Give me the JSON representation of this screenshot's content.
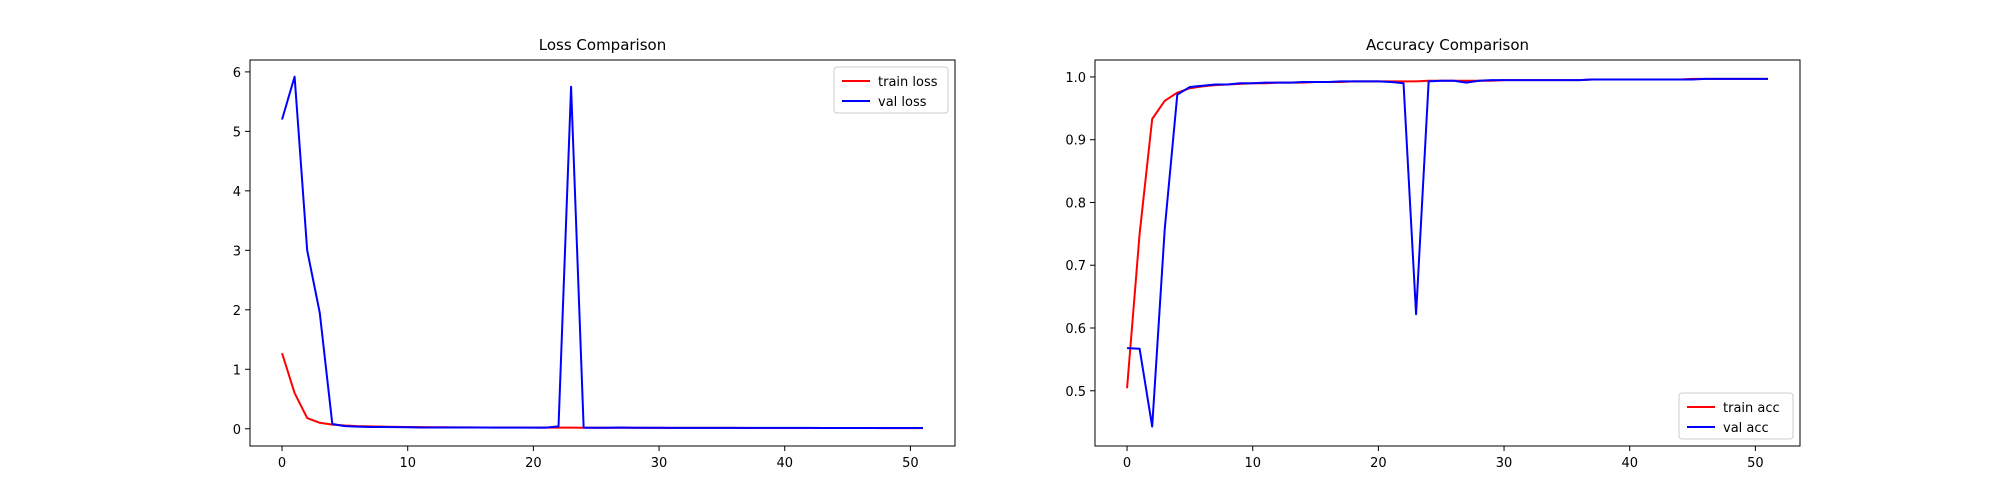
{
  "chart_data": [
    {
      "type": "line",
      "title": "Loss Comparison",
      "xlabel": "",
      "ylabel": "",
      "xlim": [
        -2.55,
        53.55
      ],
      "ylim": [
        -0.29,
        6.2
      ],
      "xticks": [
        0,
        10,
        20,
        30,
        40,
        50
      ],
      "yticks": [
        0,
        1,
        2,
        3,
        4,
        5,
        6
      ],
      "tick_format": "int",
      "legend_position": "upper-right",
      "grid": false,
      "x": [
        0,
        1,
        2,
        3,
        4,
        5,
        6,
        7,
        8,
        9,
        10,
        11,
        12,
        13,
        14,
        15,
        16,
        17,
        18,
        19,
        20,
        21,
        22,
        23,
        24,
        25,
        26,
        27,
        28,
        29,
        30,
        31,
        32,
        33,
        34,
        35,
        36,
        37,
        38,
        39,
        40,
        41,
        42,
        43,
        44,
        45,
        46,
        47,
        48,
        49,
        50,
        51
      ],
      "series": [
        {
          "name": "train loss",
          "color": "#ff0000",
          "values": [
            1.27,
            0.6,
            0.18,
            0.1,
            0.07,
            0.055,
            0.045,
            0.04,
            0.035,
            0.032,
            0.03,
            0.028,
            0.026,
            0.025,
            0.024,
            0.023,
            0.022,
            0.021,
            0.02,
            0.02,
            0.019,
            0.019,
            0.018,
            0.018,
            0.017,
            0.017,
            0.016,
            0.016,
            0.016,
            0.015,
            0.015,
            0.015,
            0.015,
            0.014,
            0.014,
            0.014,
            0.014,
            0.013,
            0.013,
            0.013,
            0.013,
            0.013,
            0.012,
            0.012,
            0.012,
            0.012,
            0.012,
            0.012,
            0.011,
            0.011,
            0.011,
            0.011
          ]
        },
        {
          "name": "val loss",
          "color": "#0000ff",
          "values": [
            5.2,
            5.92,
            3.0,
            1.95,
            0.08,
            0.045,
            0.035,
            0.03,
            0.03,
            0.028,
            0.025,
            0.022,
            0.021,
            0.02,
            0.02,
            0.02,
            0.02,
            0.019,
            0.019,
            0.019,
            0.018,
            0.018,
            0.04,
            5.75,
            0.018,
            0.017,
            0.017,
            0.022,
            0.016,
            0.016,
            0.016,
            0.015,
            0.015,
            0.015,
            0.015,
            0.015,
            0.015,
            0.014,
            0.014,
            0.014,
            0.014,
            0.014,
            0.014,
            0.013,
            0.013,
            0.013,
            0.013,
            0.013,
            0.013,
            0.013,
            0.013,
            0.013
          ]
        }
      ]
    },
    {
      "type": "line",
      "title": "Accuracy Comparison",
      "xlabel": "",
      "ylabel": "",
      "xlim": [
        -2.55,
        53.55
      ],
      "ylim": [
        0.412,
        1.027
      ],
      "xticks": [
        0,
        10,
        20,
        30,
        40,
        50
      ],
      "yticks": [
        0.5,
        0.6,
        0.7,
        0.8,
        0.9,
        1.0
      ],
      "tick_format": "1dp",
      "legend_position": "lower-right",
      "grid": false,
      "x": [
        0,
        1,
        2,
        3,
        4,
        5,
        6,
        7,
        8,
        9,
        10,
        11,
        12,
        13,
        14,
        15,
        16,
        17,
        18,
        19,
        20,
        21,
        22,
        23,
        24,
        25,
        26,
        27,
        28,
        29,
        30,
        31,
        32,
        33,
        34,
        35,
        36,
        37,
        38,
        39,
        40,
        41,
        42,
        43,
        44,
        45,
        46,
        47,
        48,
        49,
        50,
        51
      ],
      "series": [
        {
          "name": "train acc",
          "color": "#ff0000",
          "values": [
            0.504,
            0.75,
            0.933,
            0.962,
            0.975,
            0.982,
            0.985,
            0.987,
            0.988,
            0.989,
            0.99,
            0.99,
            0.991,
            0.991,
            0.991,
            0.992,
            0.992,
            0.992,
            0.993,
            0.993,
            0.993,
            0.993,
            0.993,
            0.993,
            0.994,
            0.994,
            0.994,
            0.994,
            0.994,
            0.994,
            0.995,
            0.995,
            0.995,
            0.995,
            0.995,
            0.995,
            0.995,
            0.996,
            0.996,
            0.996,
            0.996,
            0.996,
            0.996,
            0.996,
            0.996,
            0.997,
            0.997,
            0.997,
            0.997,
            0.997,
            0.997,
            0.997
          ]
        },
        {
          "name": "val acc",
          "color": "#0000ff",
          "values": [
            0.568,
            0.567,
            0.443,
            0.758,
            0.972,
            0.984,
            0.986,
            0.988,
            0.988,
            0.99,
            0.99,
            0.991,
            0.991,
            0.991,
            0.992,
            0.992,
            0.992,
            0.993,
            0.993,
            0.993,
            0.993,
            0.992,
            0.99,
            0.622,
            0.993,
            0.994,
            0.994,
            0.991,
            0.994,
            0.995,
            0.995,
            0.995,
            0.995,
            0.995,
            0.995,
            0.995,
            0.995,
            0.996,
            0.996,
            0.996,
            0.996,
            0.996,
            0.996,
            0.996,
            0.996,
            0.996,
            0.997,
            0.997,
            0.997,
            0.997,
            0.997,
            0.997
          ]
        }
      ]
    }
  ]
}
